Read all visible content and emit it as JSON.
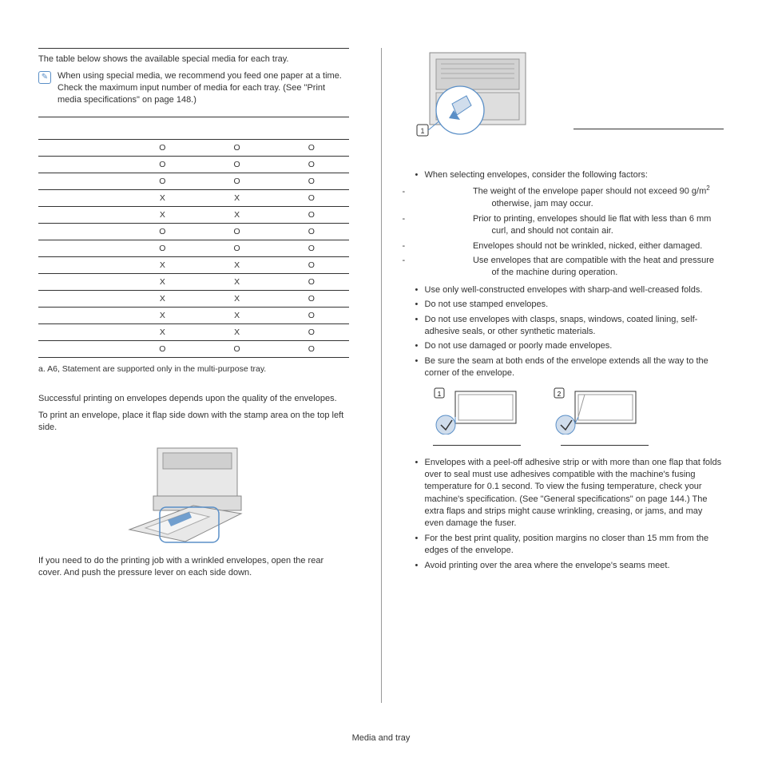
{
  "leftColumn": {
    "intro": "The table below shows the available special media for each tray.",
    "note": "When using special media, we recommend you feed one paper at a time. Check the maximum input number of media for each tray. (See \"Print media specifications\" on page 148.)",
    "table": {
      "headers": [
        "",
        "",
        "",
        ""
      ],
      "rows": [
        [
          "",
          "O",
          "O",
          "O"
        ],
        [
          "",
          "O",
          "O",
          "O"
        ],
        [
          "",
          "O",
          "O",
          "O"
        ],
        [
          "",
          "X",
          "X",
          "O"
        ],
        [
          "",
          "X",
          "X",
          "O"
        ],
        [
          "",
          "O",
          "O",
          "O"
        ],
        [
          "",
          "O",
          "O",
          "O"
        ],
        [
          "",
          "X",
          "X",
          "O"
        ],
        [
          "",
          "X",
          "X",
          "O"
        ],
        [
          "",
          "X",
          "X",
          "O"
        ],
        [
          "",
          "X",
          "X",
          "O"
        ],
        [
          "",
          "X",
          "X",
          "O"
        ],
        [
          "",
          "O",
          "O",
          "O"
        ]
      ]
    },
    "footnote": "a. A6, Statement are supported only in the multi-purpose tray.",
    "envelope": {
      "p1": "Successful printing on envelopes depends upon the quality of the envelopes.",
      "p2": "To print an envelope, place it flap side down with the stamp area on the top left side.",
      "p3": "If you need to do the printing job with a wrinkled envelopes, open the rear cover. And push the pressure lever on each side down."
    }
  },
  "rightColumn": {
    "factorsIntro": "When selecting envelopes, consider the following factors:",
    "factors": {
      "weight_a": "The weight of the envelope paper should not exceed 90 g/m",
      "weight_b": " otherwise, jam may occur.",
      "construction": "Prior to printing, envelopes should lie flat with less than 6 mm curl, and should not contain air.",
      "condition": "Envelopes should not be wrinkled, nicked, either damaged.",
      "temperature": "Use envelopes that are compatible with the heat and pressure of the machine during operation."
    },
    "bullets2": [
      "Use only well-constructed envelopes with sharp-and well-creased folds.",
      "Do not use stamped envelopes.",
      "Do not use envelopes with clasps, snaps, windows, coated lining, self-adhesive seals, or other synthetic materials.",
      "Do not use damaged or poorly made envelopes.",
      "Be sure the seam at both ends of the envelope extends all the way to the corner of the envelope."
    ],
    "bullets3": [
      "Envelopes with a peel-off adhesive strip or with more than one flap that folds over to seal must use adhesives compatible with the machine's fusing temperature for 0.1 second. To view the fusing temperature, check your machine's specification. (See \"General specifications\" on page 144.) The extra flaps and strips might cause wrinkling, creasing, or jams, and may even damage the fuser.",
      "For the best print quality, position margins no closer than 15 mm from the edges of the envelope.",
      "Avoid printing over the area where the envelope's seams meet."
    ]
  },
  "footer": "Media and tray",
  "colors": {
    "accent": "#5a8fc7",
    "line": "#333333",
    "fill_light": "#d0ddec",
    "fill_gray": "#d8d8d8"
  }
}
